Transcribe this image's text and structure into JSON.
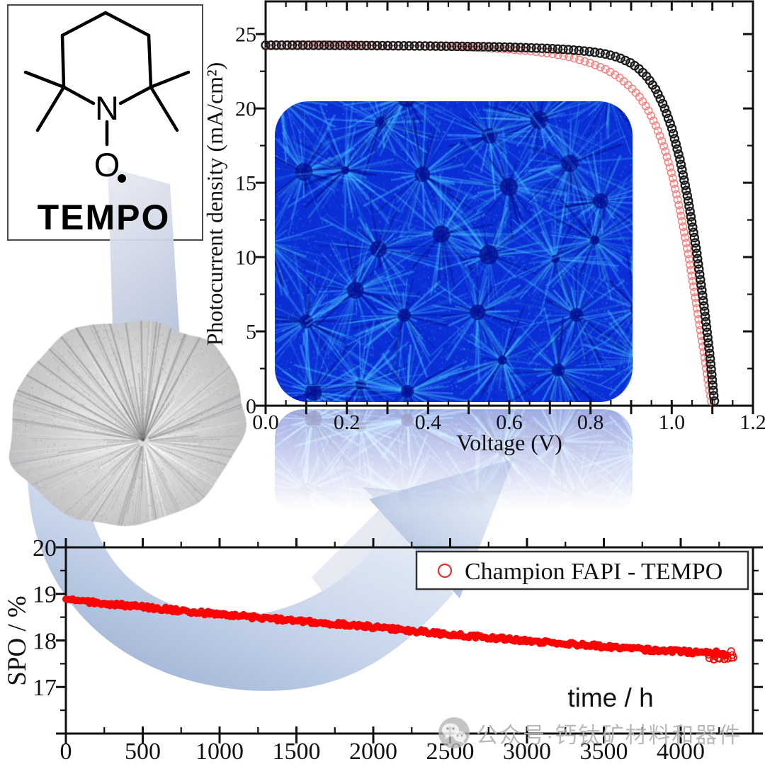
{
  "figure": {
    "tempo_panel": {
      "label": "TEMPO",
      "nitrogen": "N",
      "oxygen": "O",
      "radical": "•"
    },
    "watermark": {
      "icon": "wechat-icon",
      "text": "公众号·钙钛矿材料和器件",
      "color": "#b3b3b3"
    },
    "decor": {
      "arrow_color_dark": "#96abd0",
      "arrow_color_light": "#e4ebf5",
      "crystal": "grayscale perovskite spherulite micrograph",
      "inset": "blue perovskite thin-film micrograph with faded reflection below axis"
    }
  },
  "chart_data": [
    {
      "id": "jv_curve",
      "type": "scatter",
      "title": "",
      "xlabel": "Voltage (V)",
      "ylabel": "Photocurrent density (mA/cm²)",
      "xlim": [
        0,
        1.2
      ],
      "ylim": [
        0,
        27.2
      ],
      "grid": false,
      "x_major": 0.1,
      "x_minor": 0.05,
      "y_major": 5,
      "y_minor": 2.5,
      "x_labels": [
        [
          "0.0",
          0
        ],
        [
          "0.2",
          0.2
        ],
        [
          "0.4",
          0.4
        ],
        [
          "0.6",
          0.6
        ],
        [
          "0.8",
          0.8
        ],
        [
          "1.0",
          1.0
        ],
        [
          "1.2",
          1.2
        ]
      ],
      "y_labels": [
        [
          "0",
          0
        ],
        [
          "5",
          5
        ],
        [
          "10",
          10
        ],
        [
          "15",
          15
        ],
        [
          "20",
          20
        ],
        [
          "25",
          25
        ]
      ],
      "series": [
        {
          "name": "red_open_circles",
          "color": "#f28080",
          "line_color": "#f6b0b0",
          "marker": "open-circle",
          "points": [
            [
              0,
              24.3
            ],
            [
              0.1,
              24.3
            ],
            [
              0.2,
              24.28
            ],
            [
              0.3,
              24.25
            ],
            [
              0.4,
              24.2
            ],
            [
              0.5,
              24.12
            ],
            [
              0.55,
              24.05
            ],
            [
              0.6,
              23.97
            ],
            [
              0.65,
              23.86
            ],
            [
              0.7,
              23.7
            ],
            [
              0.75,
              23.45
            ],
            [
              0.8,
              23.05
            ],
            [
              0.84,
              22.6
            ],
            [
              0.87,
              22.1
            ],
            [
              0.9,
              21.4
            ],
            [
              0.92,
              20.8
            ],
            [
              0.94,
              20.0
            ],
            [
              0.96,
              18.9
            ],
            [
              0.98,
              17.5
            ],
            [
              1.0,
              15.6
            ],
            [
              1.02,
              13.2
            ],
            [
              1.04,
              10.3
            ],
            [
              1.06,
              6.9
            ],
            [
              1.08,
              3.4
            ],
            [
              1.09,
              1.5
            ],
            [
              1.098,
              0.2
            ]
          ]
        },
        {
          "name": "black_open_circles",
          "color": "#1c1c1c",
          "line_color": "#555555",
          "marker": "open-circle",
          "points": [
            [
              0,
              24.25
            ],
            [
              0.1,
              24.25
            ],
            [
              0.2,
              24.24
            ],
            [
              0.3,
              24.22
            ],
            [
              0.4,
              24.2
            ],
            [
              0.5,
              24.17
            ],
            [
              0.55,
              24.15
            ],
            [
              0.6,
              24.12
            ],
            [
              0.65,
              24.08
            ],
            [
              0.7,
              24.03
            ],
            [
              0.75,
              23.95
            ],
            [
              0.8,
              23.82
            ],
            [
              0.84,
              23.65
            ],
            [
              0.87,
              23.42
            ],
            [
              0.9,
              23.05
            ],
            [
              0.92,
              22.65
            ],
            [
              0.94,
              22.1
            ],
            [
              0.96,
              21.3
            ],
            [
              0.98,
              20.2
            ],
            [
              1.0,
              18.7
            ],
            [
              1.02,
              16.6
            ],
            [
              1.04,
              13.9
            ],
            [
              1.06,
              10.6
            ],
            [
              1.08,
              6.6
            ],
            [
              1.095,
              3.1
            ],
            [
              1.103,
              0.8
            ],
            [
              1.106,
              0.1
            ]
          ]
        }
      ]
    },
    {
      "id": "spo_stability",
      "type": "scatter",
      "title": "",
      "xlabel": "time / h",
      "ylabel": "SPO / %",
      "xlim": [
        0,
        4470
      ],
      "ylim": [
        16,
        20
      ],
      "grid": false,
      "x_major": 500,
      "x_minor": 250,
      "y_major": 1,
      "y_minor": 0.5,
      "x_labels": [
        [
          "0",
          0
        ],
        [
          "500",
          500
        ],
        [
          "1000",
          1000
        ],
        [
          "1500",
          1500
        ],
        [
          "2000",
          2000
        ],
        [
          "2500",
          2500
        ],
        [
          "3000",
          3000
        ],
        [
          "3500",
          3500
        ],
        [
          "4000",
          4000
        ]
      ],
      "y_labels": [
        [
          "17",
          17
        ],
        [
          "18",
          18
        ],
        [
          "19",
          19
        ],
        [
          "20",
          20
        ]
      ],
      "legend": {
        "label": "Champion FAPI - TEMPO",
        "marker": "open-circle",
        "color": "#e83030",
        "position": "top-right"
      },
      "series": [
        {
          "name": "champion_fapi_tempo",
          "color": "#fa0505",
          "marker": "filled-circle",
          "points": [
            [
              0,
              18.87
            ],
            [
              250,
              18.79
            ],
            [
              500,
              18.72
            ],
            [
              750,
              18.64
            ],
            [
              1000,
              18.56
            ],
            [
              1250,
              18.49
            ],
            [
              1500,
              18.43
            ],
            [
              1750,
              18.36
            ],
            [
              2000,
              18.29
            ],
            [
              2250,
              18.21
            ],
            [
              2500,
              18.13
            ],
            [
              2750,
              18.06
            ],
            [
              3000,
              17.99
            ],
            [
              3250,
              17.93
            ],
            [
              3500,
              17.87
            ],
            [
              3800,
              17.8
            ],
            [
              4000,
              17.76
            ],
            [
              4150,
              17.73
            ],
            [
              4300,
              17.7
            ]
          ],
          "tail_scatter": {
            "t_range": [
              4150,
              4345
            ],
            "spo_range": [
              17.58,
              17.79
            ]
          }
        }
      ]
    }
  ]
}
